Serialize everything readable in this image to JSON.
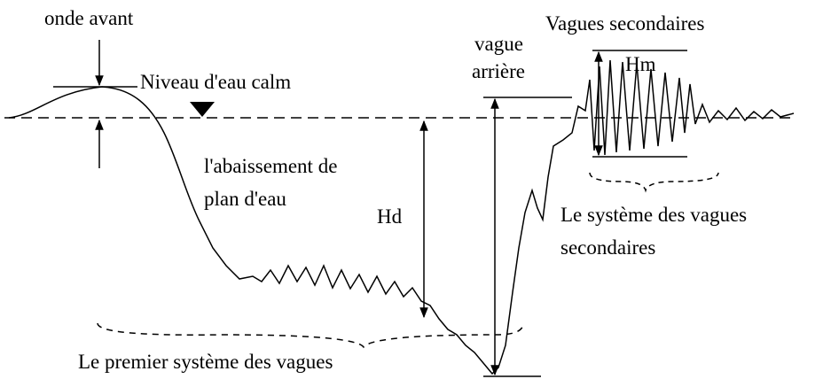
{
  "labels": {
    "front_wave": "onde avant",
    "still_level": "Niveau d'eau calm",
    "drawdown_1": "l'abaissement de",
    "drawdown_2": "plan d'eau",
    "hd": "Hd",
    "back_wave_1": "vague",
    "back_wave_2": "arrière",
    "secondary_waves": "Vagues secondaires",
    "hm": "Hm",
    "secondary_system_1": "Le système des vagues",
    "secondary_system_2": "secondaires",
    "first_system": "Le premier système des vagues"
  }
}
